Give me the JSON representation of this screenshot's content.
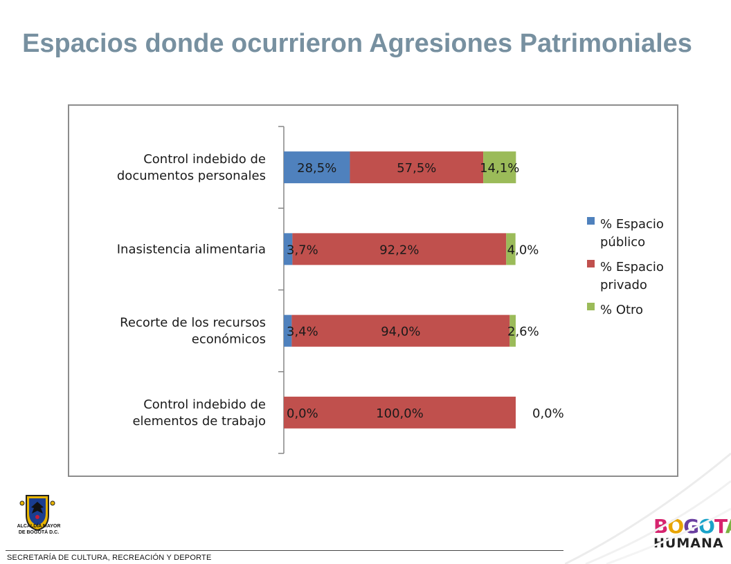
{
  "title": "Espacios donde ocurrieron Agresiones Patrimoniales",
  "footer": {
    "text": "SECRETARÍA DE CULTURA, RECREACIÓN Y DEPORTE"
  },
  "logo_left": {
    "line1": "ALCALDÍA MAYOR",
    "line2": "DE BOGOTÁ D.C."
  },
  "logo_right": {
    "line1": "BOGOTÁ",
    "line2": "HUMANA"
  },
  "colors": {
    "title": "#7790a0",
    "publico": "#4f81bd",
    "privado": "#c0504d",
    "otro": "#9bbb59"
  },
  "chart_data": {
    "type": "bar",
    "orientation": "horizontal",
    "stacked": true,
    "categories": [
      [
        "Control indebido de",
        "documentos personales"
      ],
      [
        "Inasistencia alimentaria"
      ],
      [
        "Recorte de los recursos",
        "económicos"
      ],
      [
        "Control indebido de",
        "elementos de trabajo"
      ]
    ],
    "series": [
      {
        "name": "% Espacio público",
        "legend_lines": [
          "% Espacio",
          "público"
        ],
        "color": "#4f81bd",
        "values": [
          28.5,
          3.7,
          3.4,
          0.0
        ],
        "labels": [
          "28,5%",
          "3,7%",
          "3,4%",
          "0,0%"
        ]
      },
      {
        "name": "% Espacio privado",
        "legend_lines": [
          "% Espacio",
          "privado"
        ],
        "color": "#c0504d",
        "values": [
          57.5,
          92.2,
          94.0,
          100.0
        ],
        "labels": [
          "57,5%",
          "92,2%",
          "94,0%",
          "100,0%"
        ]
      },
      {
        "name": "% Otro",
        "legend_lines": [
          "% Otro"
        ],
        "color": "#9bbb59",
        "values": [
          14.1,
          4.0,
          2.6,
          0.0
        ],
        "labels": [
          "14,1%",
          "4,0%",
          "2,6%",
          "0,0%"
        ]
      }
    ],
    "xlim": [
      0,
      100
    ],
    "grid": false,
    "legend": "right"
  }
}
